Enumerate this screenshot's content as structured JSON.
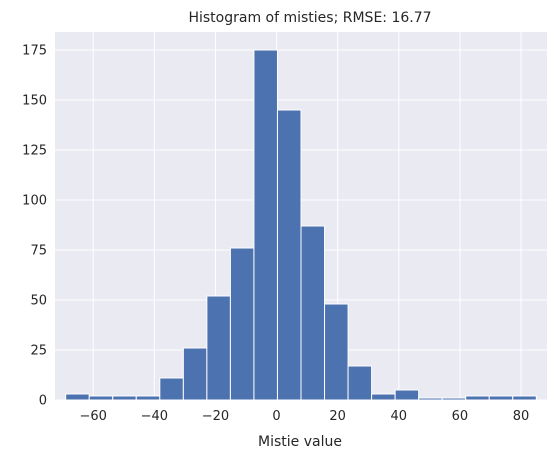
{
  "chart_data": {
    "type": "bar",
    "title": "Histogram of misties; RMSE: 16.77",
    "xlabel": "Mistie value",
    "ylabel": "",
    "xlim": [
      -72.5,
      88.5
    ],
    "ylim": [
      0,
      184
    ],
    "xticks": [
      -60,
      -40,
      -20,
      0,
      20,
      40,
      60,
      80
    ],
    "xtick_labels": [
      "−60",
      "−40",
      "−20",
      "0",
      "20",
      "40",
      "60",
      "80"
    ],
    "yticks": [
      0,
      25,
      50,
      75,
      100,
      125,
      150,
      175
    ],
    "ytick_labels": [
      "0",
      "25",
      "50",
      "75",
      "100",
      "125",
      "150",
      "175"
    ],
    "bin_edges": [
      -69.0,
      -61.3,
      -53.6,
      -45.9,
      -38.2,
      -30.5,
      -22.8,
      -15.1,
      -7.4,
      0.3,
      8.0,
      15.7,
      23.4,
      31.1,
      38.8,
      46.5,
      54.2,
      61.9,
      69.6,
      77.3,
      85.0
    ],
    "values": [
      3,
      2,
      2,
      2,
      11,
      26,
      52,
      76,
      175,
      145,
      87,
      48,
      17,
      3,
      5,
      1,
      1,
      2,
      2,
      2
    ],
    "colors": {
      "bar": "#4c72b0",
      "background": "#eaeaf2",
      "grid": "#ffffff",
      "bar_edge": "#ffffff"
    },
    "grid": true
  }
}
